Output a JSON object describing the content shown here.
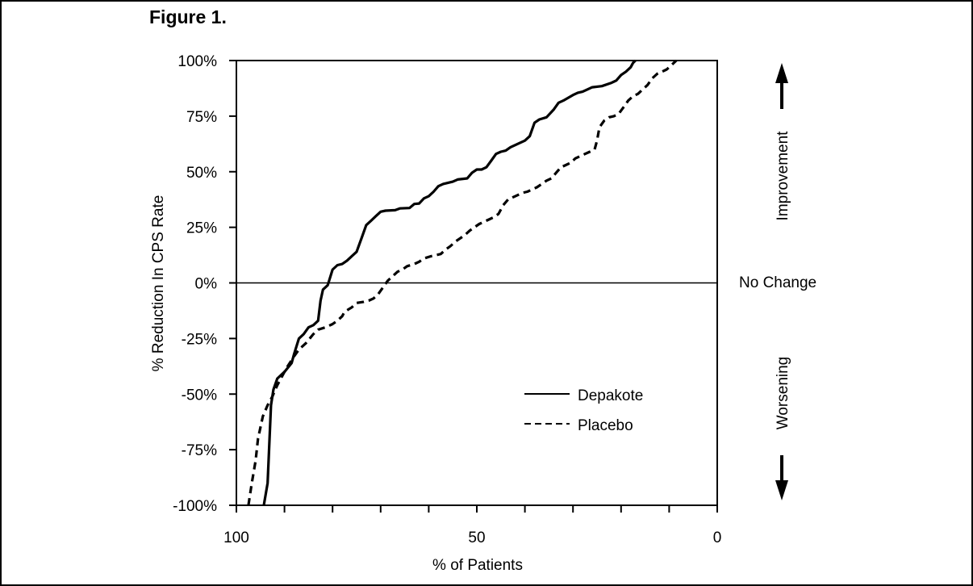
{
  "figure_label": "Figure 1.",
  "chart_data": {
    "type": "line",
    "ylabel": "% Reduction In CPS Rate",
    "xlabel": "% of Patients",
    "xlim": [
      100,
      0
    ],
    "ylim": [
      -100,
      100
    ],
    "x_reversed": true,
    "x_ticks": [
      100,
      90,
      80,
      70,
      60,
      50,
      40,
      30,
      20,
      10,
      0
    ],
    "x_tick_labels": [
      {
        "value": 100,
        "label": "100"
      },
      {
        "value": 50,
        "label": "50"
      },
      {
        "value": 0,
        "label": "0"
      }
    ],
    "y_ticks": [
      -100,
      -75,
      -50,
      -25,
      0,
      25,
      50,
      75,
      100
    ],
    "y_tick_labels": [
      "-100%",
      "-75%",
      "-50%",
      "-25%",
      "0%",
      "25%",
      "50%",
      "75%",
      "100%"
    ],
    "reference_line": {
      "y": 0,
      "label": "No Change"
    },
    "annotations": {
      "improvement": "Improvement",
      "worsening": "Worsening"
    },
    "legend_placement": "lower-right inside plot",
    "grid": false,
    "series": [
      {
        "name": "Depakote",
        "style": "solid",
        "points": [
          [
            94.3,
            -100
          ],
          [
            93.5,
            -90
          ],
          [
            93.2,
            -75
          ],
          [
            92.8,
            -55
          ],
          [
            92.3,
            -48
          ],
          [
            91.5,
            -43
          ],
          [
            90,
            -40
          ],
          [
            88.5,
            -36
          ],
          [
            88,
            -32
          ],
          [
            87,
            -25
          ],
          [
            86,
            -23
          ],
          [
            85,
            -20
          ],
          [
            84,
            -19
          ],
          [
            83,
            -17
          ],
          [
            82.5,
            -8
          ],
          [
            82,
            -3
          ],
          [
            81,
            -1
          ],
          [
            80,
            6
          ],
          [
            79,
            8
          ],
          [
            78,
            8.5
          ],
          [
            77,
            10
          ],
          [
            76,
            12
          ],
          [
            75,
            14
          ],
          [
            74,
            20
          ],
          [
            73,
            26
          ],
          [
            72,
            28
          ],
          [
            71,
            30
          ],
          [
            70,
            32
          ],
          [
            69,
            32.5
          ],
          [
            67,
            32.7
          ],
          [
            66,
            33.5
          ],
          [
            64,
            33.7
          ],
          [
            63,
            35.5
          ],
          [
            62,
            35.7
          ],
          [
            61,
            38
          ],
          [
            60,
            39
          ],
          [
            59,
            41
          ],
          [
            58,
            43.5
          ],
          [
            57,
            44.5
          ],
          [
            55,
            45.5
          ],
          [
            54,
            46.5
          ],
          [
            52,
            47
          ],
          [
            51,
            49.5
          ],
          [
            50,
            51
          ],
          [
            49,
            51
          ],
          [
            48,
            52
          ],
          [
            47,
            55
          ],
          [
            46,
            58
          ],
          [
            45,
            59
          ],
          [
            44,
            59.5
          ],
          [
            43,
            61
          ],
          [
            41,
            63
          ],
          [
            40,
            64
          ],
          [
            39,
            66
          ],
          [
            38,
            72
          ],
          [
            37,
            73.5
          ],
          [
            35.5,
            74.5
          ],
          [
            34,
            78
          ],
          [
            33,
            81
          ],
          [
            32,
            82
          ],
          [
            30,
            84.5
          ],
          [
            29,
            85.5
          ],
          [
            28,
            86
          ],
          [
            27,
            87
          ],
          [
            26,
            88
          ],
          [
            24,
            88.5
          ],
          [
            22,
            90
          ],
          [
            21,
            91
          ],
          [
            20,
            93.5
          ],
          [
            19,
            95
          ],
          [
            18,
            97
          ],
          [
            17.5,
            99
          ],
          [
            17,
            100
          ]
        ]
      },
      {
        "name": "Placebo",
        "style": "dashed",
        "points": [
          [
            97.5,
            -100
          ],
          [
            96.8,
            -90
          ],
          [
            96,
            -80
          ],
          [
            95.5,
            -70
          ],
          [
            94.5,
            -60
          ],
          [
            93.5,
            -55
          ],
          [
            92.5,
            -51
          ],
          [
            91.5,
            -46
          ],
          [
            90.5,
            -42
          ],
          [
            89.5,
            -38
          ],
          [
            88,
            -33
          ],
          [
            87,
            -30
          ],
          [
            85.5,
            -27
          ],
          [
            84,
            -23
          ],
          [
            83,
            -21
          ],
          [
            81.5,
            -20
          ],
          [
            80,
            -18.5
          ],
          [
            79,
            -17
          ],
          [
            78,
            -15
          ],
          [
            77.5,
            -13
          ],
          [
            76,
            -11
          ],
          [
            75,
            -9
          ],
          [
            73.5,
            -8.5
          ],
          [
            72.5,
            -8
          ],
          [
            71.5,
            -7
          ],
          [
            70.5,
            -5
          ],
          [
            69.5,
            -2
          ],
          [
            68.5,
            1
          ],
          [
            67.5,
            3
          ],
          [
            66.5,
            5
          ],
          [
            65.5,
            6
          ],
          [
            64.5,
            7.5
          ],
          [
            63,
            8.5
          ],
          [
            62,
            9.5
          ],
          [
            61,
            11
          ],
          [
            59.5,
            12
          ],
          [
            58.5,
            12.5
          ],
          [
            57.5,
            13
          ],
          [
            56.5,
            15
          ],
          [
            55.5,
            16.5
          ],
          [
            54.5,
            18.5
          ],
          [
            53.5,
            20
          ],
          [
            52.5,
            21.5
          ],
          [
            51.5,
            23.5
          ],
          [
            50.5,
            25
          ],
          [
            49.5,
            26.5
          ],
          [
            48.5,
            27.5
          ],
          [
            47.5,
            28.5
          ],
          [
            46.5,
            29.5
          ],
          [
            45.5,
            31
          ],
          [
            44.5,
            35
          ],
          [
            43.5,
            37.5
          ],
          [
            42.5,
            38.5
          ],
          [
            41.5,
            39.5
          ],
          [
            40.5,
            40.5
          ],
          [
            39.5,
            41
          ],
          [
            38.5,
            42
          ],
          [
            37.5,
            43
          ],
          [
            36.5,
            44.5
          ],
          [
            35.5,
            46
          ],
          [
            34.5,
            47
          ],
          [
            33.5,
            49.5
          ],
          [
            32.5,
            52
          ],
          [
            31.5,
            53
          ],
          [
            30.5,
            54
          ],
          [
            29.5,
            56
          ],
          [
            28.5,
            57
          ],
          [
            27.5,
            58
          ],
          [
            26.5,
            59
          ],
          [
            25.5,
            60
          ],
          [
            25,
            64
          ],
          [
            24.5,
            70
          ],
          [
            23.5,
            73
          ],
          [
            22.5,
            74.5
          ],
          [
            21.5,
            75
          ],
          [
            20.5,
            76
          ],
          [
            19.5,
            79
          ],
          [
            18.5,
            82
          ],
          [
            17.5,
            84
          ],
          [
            16.5,
            85
          ],
          [
            15.5,
            87
          ],
          [
            14.5,
            89
          ],
          [
            13.5,
            92
          ],
          [
            12.5,
            94
          ],
          [
            11.5,
            95
          ],
          [
            10.5,
            96
          ],
          [
            9.5,
            98
          ],
          [
            8.5,
            100
          ]
        ]
      }
    ]
  }
}
